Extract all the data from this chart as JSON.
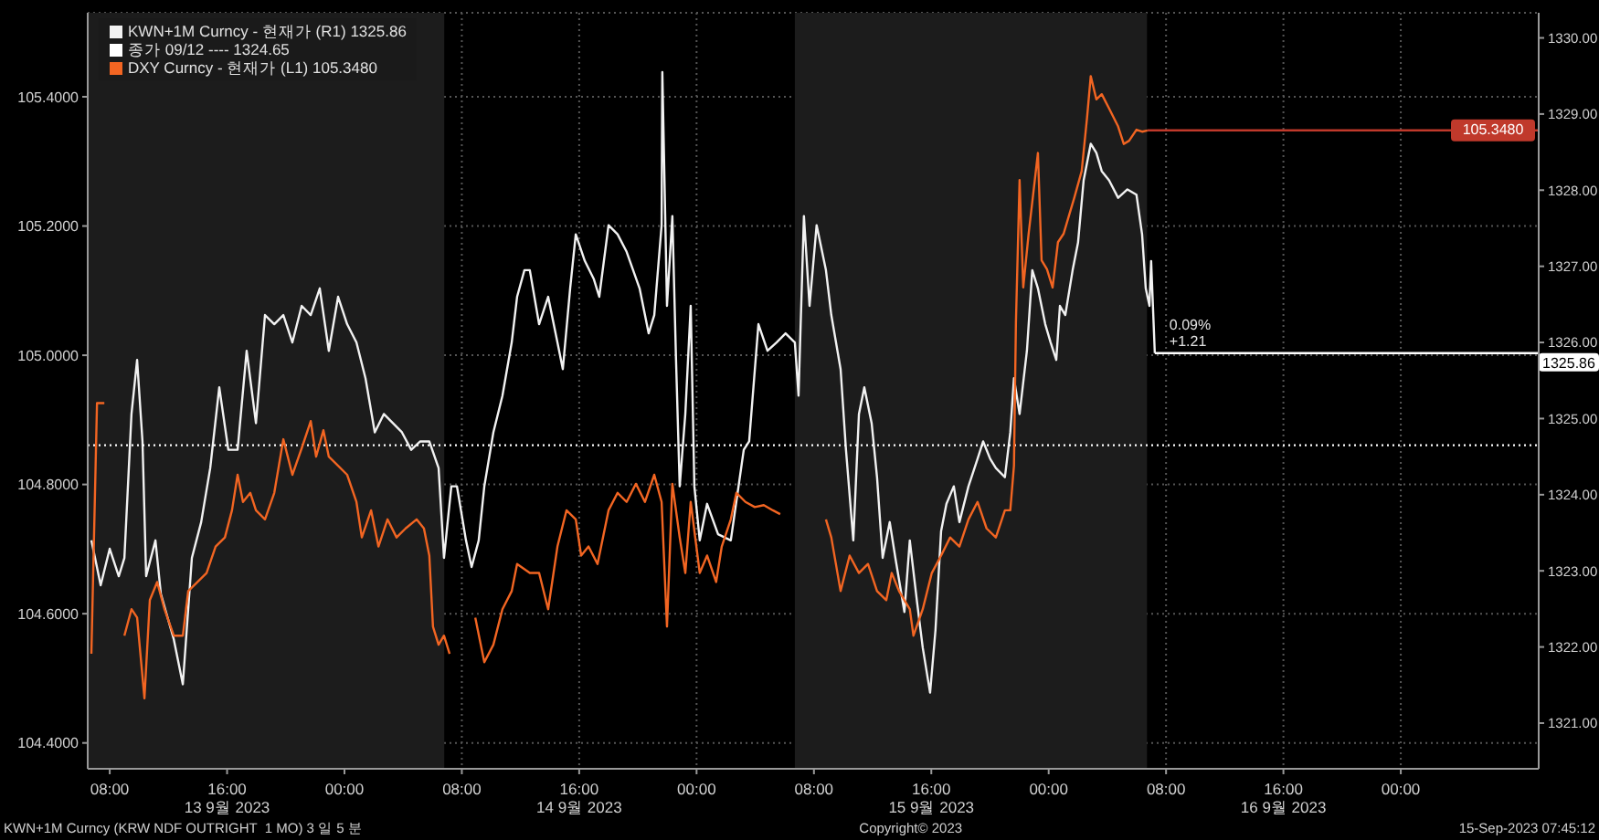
{
  "chart_data": {
    "type": "line",
    "xlim": [
      "2023-09-13T06:30",
      "2023-09-17T09:24"
    ],
    "xticks": [
      {
        "value": "2023-09-13T08:00",
        "label": "08:00"
      },
      {
        "value": "2023-09-13T16:00",
        "label": "16:00\n13 9월 2023"
      },
      {
        "value": "2023-09-14T00:00",
        "label": "00:00"
      },
      {
        "value": "2023-09-14T08:00",
        "label": "08:00"
      },
      {
        "value": "2023-09-14T16:00",
        "label": "16:00\n14 9월 2023"
      },
      {
        "value": "2023-09-15T00:00",
        "label": "00:00"
      },
      {
        "value": "2023-09-15T08:00",
        "label": "08:00"
      },
      {
        "value": "2023-09-15T16:00",
        "label": "16:00\n15 9월 2023"
      },
      {
        "value": "2023-09-16T00:00",
        "label": "00:00"
      },
      {
        "value": "2023-09-16T08:00",
        "label": "08:00"
      },
      {
        "value": "2023-09-16T16:00",
        "label": "16:00\n16 9월 2023"
      },
      {
        "value": "2023-09-17T00:00",
        "label": "00:00"
      }
    ],
    "ylim": [
      104.36,
      105.53
    ],
    "yticks": [
      {
        "value": 104.4,
        "label": "104.4000"
      },
      {
        "value": 104.6,
        "label": "104.6000"
      },
      {
        "value": 104.8,
        "label": "104.8000"
      },
      {
        "value": 105,
        "label": "105.0000"
      },
      {
        "value": 105.2,
        "label": "105.2000"
      },
      {
        "value": 105.4,
        "label": "105.4000"
      }
    ],
    "y2lim": [
      1320.4,
      1330.33
    ],
    "y2ticks": [
      {
        "value": 1321,
        "label": "1321.00"
      },
      {
        "value": 1322,
        "label": "1322.00"
      },
      {
        "value": 1323,
        "label": "1323.00"
      },
      {
        "value": 1324,
        "label": "1324.00"
      },
      {
        "value": 1325,
        "label": "1325.00"
      },
      {
        "value": 1326,
        "label": "1326.00"
      },
      {
        "value": 1327,
        "label": "1327.00"
      },
      {
        "value": 1328,
        "label": "1328.00"
      },
      {
        "value": 1329,
        "label": "1329.00"
      },
      {
        "value": 1330,
        "label": "1330.00"
      }
    ],
    "grid": true,
    "legend": "top left",
    "bands": [
      {
        "axis": "x",
        "from": "2023-09-13T06:30",
        "to": "2023-09-14T06:48",
        "color": "#1c1c1c"
      },
      {
        "axis": "x",
        "from": "2023-09-15T06:42",
        "to": "2023-09-16T06:42",
        "color": "#1c1c1c"
      }
    ],
    "ref_lines": [
      {
        "axis": "y",
        "value": 105.348,
        "label": "105.3480",
        "color": "#c0392b"
      },
      {
        "axis": "y2",
        "value": 1325.86,
        "label": "1325.86",
        "color": "#ffffff"
      }
    ],
    "annotations": [
      "0.09%",
      "+1.21",
      "KWN+1M Curncy (KRW NDF OUTRIGHT  1 MO) 3 일 5 분",
      "Copyright© 2023",
      "15-Sep-2023 07:45:12"
    ],
    "series": [
      {
        "name": "KWN+1M Curncy - 현재가 (R1) 1325.86",
        "color": "#f2f2f2",
        "axis": "y2",
        "x": [
          "2023-09-13T06:45",
          "2023-09-13T07:23",
          "2023-09-13T08:00",
          "2023-09-13T08:37",
          "2023-09-13T09:00",
          "2023-09-13T09:29",
          "2023-09-13T09:52",
          "2023-09-13T10:14",
          "2023-09-13T10:29",
          "2023-09-13T11:07",
          "2023-09-13T11:29",
          "2023-09-13T12:22",
          "2023-09-13T12:59",
          "2023-09-13T13:36",
          "2023-09-13T14:14",
          "2023-09-13T14:51",
          "2023-09-13T15:28",
          "2023-09-13T16:05",
          "2023-09-13T16:43",
          "2023-09-13T17:20",
          "2023-09-13T17:58",
          "2023-09-13T18:35",
          "2023-09-13T19:13",
          "2023-09-13T19:50",
          "2023-09-13T20:27",
          "2023-09-13T21:05",
          "2023-09-13T21:42",
          "2023-09-13T22:19",
          "2023-09-13T22:56",
          "2023-09-13T23:34",
          "2023-09-14T00:11",
          "2023-09-14T00:49",
          "2023-09-14T01:26",
          "2023-09-14T02:04",
          "2023-09-14T02:41",
          "2023-09-14T03:18",
          "2023-09-14T03:55",
          "2023-09-14T04:33",
          "2023-09-14T05:10",
          "2023-09-14T05:47",
          "2023-09-14T06:25",
          "2023-09-14T06:47",
          "2023-09-14T07:17",
          "2023-09-14T07:40",
          "2023-09-14T08:17",
          "2023-09-14T08:40",
          "2023-09-14T09:09",
          "2023-09-14T09:32",
          "2023-09-14T10:09",
          "2023-09-14T10:46",
          "2023-09-14T11:24",
          "2023-09-14T11:46",
          "2023-09-14T12:16",
          "2023-09-14T12:38",
          "2023-09-14T13:16",
          "2023-09-14T13:53",
          "2023-09-14T14:31",
          "2023-09-14T14:53",
          "2023-09-14T15:23",
          "2023-09-14T15:46",
          "2023-09-14T16:23",
          "2023-09-14T17:00",
          "2023-09-14T17:22",
          "2023-09-14T18:00",
          "2023-09-14T18:37",
          "2023-09-14T19:14",
          "2023-09-14T20:07",
          "2023-09-14T20:44",
          "2023-09-14T21:07",
          "2023-09-14T21:37",
          "2023-09-14T21:40",
          "2023-09-14T21:59",
          "2023-09-14T22:21",
          "2023-09-14T22:36",
          "2023-09-14T22:51",
          "2023-09-14T23:14",
          "2023-09-14T23:36",
          "2023-09-14T23:51",
          "2023-09-15T00:13",
          "2023-09-15T00:43",
          "2023-09-15T01:28",
          "2023-09-15T02:20",
          "2023-09-15T03:13",
          "2023-09-15T03:35",
          "2023-09-15T04:13",
          "2023-09-15T04:50",
          "2023-09-15T05:27",
          "2023-09-15T06:04",
          "2023-09-15T06:42",
          "2023-09-15T06:57",
          "2023-09-15T07:19",
          "2023-09-15T07:42",
          "2023-09-15T08:11",
          "2023-09-15T08:49",
          "2023-09-15T09:11",
          "2023-09-15T09:49",
          "2023-09-15T10:11",
          "2023-09-15T10:41",
          "2023-09-15T11:04",
          "2023-09-15T11:26",
          "2023-09-15T11:56",
          "2023-09-15T12:18",
          "2023-09-15T12:41",
          "2023-09-15T13:10",
          "2023-09-15T13:33",
          "2023-09-15T14:10",
          "2023-09-15T14:32",
          "2023-09-15T15:02",
          "2023-09-15T15:25",
          "2023-09-15T15:55",
          "2023-09-15T16:17",
          "2023-09-15T16:40",
          "2023-09-15T17:02",
          "2023-09-15T17:32",
          "2023-09-15T17:55",
          "2023-09-15T18:32",
          "2023-09-15T19:09",
          "2023-09-15T19:32",
          "2023-09-15T20:01",
          "2023-09-15T20:24",
          "2023-09-15T21:01",
          "2023-09-15T21:23",
          "2023-09-15T21:38",
          "2023-09-15T22:01",
          "2023-09-15T22:31",
          "2023-09-15T22:53",
          "2023-09-15T23:16",
          "2023-09-15T23:46",
          "2023-09-16T00:08",
          "2023-09-16T00:31",
          "2023-09-16T00:46",
          "2023-09-16T01:08",
          "2023-09-16T01:38",
          "2023-09-16T02:00",
          "2023-09-16T02:23",
          "2023-09-16T02:52",
          "2023-09-16T03:15",
          "2023-09-16T03:37",
          "2023-09-16T04:07",
          "2023-09-16T04:44",
          "2023-09-16T05:22",
          "2023-09-16T05:59",
          "2023-09-16T06:22",
          "2023-09-16T06:37",
          "2023-09-16T06:52",
          "2023-09-16T06:59",
          "2023-09-16T07:14"
        ],
        "values": [
          1323.4,
          1322.81,
          1323.29,
          1322.93,
          1323.17,
          1325.06,
          1325.77,
          1324.7,
          1322.93,
          1323.4,
          1322.7,
          1322.1,
          1321.51,
          1323.17,
          1323.64,
          1324.35,
          1325.41,
          1324.59,
          1324.59,
          1325.89,
          1324.94,
          1326.36,
          1326.24,
          1326.36,
          1326.0,
          1326.48,
          1326.36,
          1326.71,
          1325.89,
          1326.6,
          1326.24,
          1326.0,
          1325.53,
          1324.82,
          1325.06,
          1324.94,
          1324.82,
          1324.59,
          1324.7,
          1324.7,
          1324.35,
          1323.17,
          1324.11,
          1324.11,
          1323.4,
          1323.05,
          1323.4,
          1324.11,
          1324.82,
          1325.3,
          1326.0,
          1326.6,
          1326.95,
          1326.95,
          1326.24,
          1326.6,
          1326.0,
          1325.65,
          1326.71,
          1327.42,
          1327.07,
          1326.83,
          1326.6,
          1327.54,
          1327.42,
          1327.19,
          1326.71,
          1326.12,
          1326.36,
          1327.54,
          1329.55,
          1326.48,
          1327.66,
          1325.77,
          1324.11,
          1325.06,
          1326.48,
          1324.11,
          1323.4,
          1323.88,
          1323.48,
          1323.4,
          1324.59,
          1324.7,
          1326.24,
          1325.89,
          1326.0,
          1326.12,
          1326.0,
          1325.3,
          1327.66,
          1326.48,
          1327.54,
          1326.95,
          1326.36,
          1325.65,
          1324.59,
          1323.4,
          1325.06,
          1325.41,
          1324.94,
          1324.23,
          1323.17,
          1323.64,
          1323.17,
          1322.46,
          1323.4,
          1322.58,
          1321.99,
          1321.4,
          1322.22,
          1323.52,
          1323.88,
          1324.11,
          1323.64,
          1324.11,
          1324.47,
          1324.7,
          1324.47,
          1324.35,
          1324.23,
          1324.82,
          1325.53,
          1325.06,
          1325.89,
          1326.95,
          1326.71,
          1326.24,
          1326.0,
          1325.77,
          1326.48,
          1326.36,
          1326.95,
          1327.31,
          1328.13,
          1328.61,
          1328.49,
          1328.25,
          1328.13,
          1327.9,
          1328.01,
          1327.94,
          1327.42,
          1326.71,
          1326.48,
          1327.07,
          1325.86
        ]
      },
      {
        "name": "종가 09/12 ---- 1324.65",
        "color": "#ffffff",
        "axis": "y2",
        "line_style": "dotted",
        "x": [
          "2023-09-13T06:30",
          "2023-09-17T09:24"
        ],
        "values": [
          1324.65,
          1324.65
        ]
      },
      {
        "name": "DXY Curncy - 현재가 (L1) 105.3480",
        "color": "#f26522",
        "x": [
          "2023-09-13T06:45",
          "2023-09-13T07:08",
          "2023-09-13T07:38",
          "2023-09-13T08:18",
          "2023-09-13T09:00",
          "2023-09-13T09:29",
          "2023-09-13T09:52",
          "2023-09-13T10:22",
          "2023-09-13T10:44",
          "2023-09-13T11:14",
          "2023-09-13T11:44",
          "2023-09-13T12:22",
          "2023-09-13T12:59",
          "2023-09-13T13:21",
          "2023-09-13T13:59",
          "2023-09-13T14:36",
          "2023-09-13T15:13",
          "2023-09-13T15:51",
          "2023-09-13T16:20",
          "2023-09-13T16:43",
          "2023-09-13T17:05",
          "2023-09-13T17:35",
          "2023-09-13T17:58",
          "2023-09-13T18:35",
          "2023-09-13T19:13",
          "2023-09-13T19:50",
          "2023-09-13T20:27",
          "2023-09-13T21:05",
          "2023-09-13T21:42",
          "2023-09-13T22:04",
          "2023-09-13T22:34",
          "2023-09-13T22:56",
          "2023-09-13T23:34",
          "2023-09-14T00:11",
          "2023-09-14T00:49",
          "2023-09-14T01:11",
          "2023-09-14T01:49",
          "2023-09-14T02:19",
          "2023-09-14T02:56",
          "2023-09-14T03:33",
          "2023-09-14T04:10",
          "2023-09-14T04:55",
          "2023-09-14T05:25",
          "2023-09-14T05:47",
          "2023-09-14T06:02",
          "2023-09-14T06:25",
          "2023-09-14T06:47",
          "2023-09-14T07:10",
          "2023-09-14T08:00",
          "2023-09-14T08:55",
          "2023-09-14T09:32",
          "2023-09-14T10:09",
          "2023-09-14T10:46",
          "2023-09-14T11:24",
          "2023-09-14T11:46",
          "2023-09-14T12:38",
          "2023-09-14T13:16",
          "2023-09-14T13:53",
          "2023-09-14T14:31",
          "2023-09-14T15:08",
          "2023-09-14T15:46",
          "2023-09-14T16:08",
          "2023-09-14T16:38",
          "2023-09-14T17:15",
          "2023-09-14T18:00",
          "2023-09-14T18:37",
          "2023-09-14T19:14",
          "2023-09-14T19:52",
          "2023-09-14T20:29",
          "2023-09-14T21:07",
          "2023-09-14T21:37",
          "2023-09-14T21:59",
          "2023-09-14T22:21",
          "2023-09-14T22:51",
          "2023-09-14T23:14",
          "2023-09-14T23:36",
          "2023-09-15T00:13",
          "2023-09-15T00:43",
          "2023-09-15T01:20",
          "2023-09-15T01:43",
          "2023-09-15T02:20",
          "2023-09-15T02:43",
          "2023-09-15T03:20",
          "2023-09-15T03:58",
          "2023-09-15T04:35",
          "2023-09-15T05:12",
          "2023-09-15T05:42",
          "2023-09-15T07:12",
          "2023-09-15T08:49",
          "2023-09-15T09:11",
          "2023-09-15T09:49",
          "2023-09-15T10:26",
          "2023-09-15T11:04",
          "2023-09-15T11:41",
          "2023-09-15T12:18",
          "2023-09-15T12:56",
          "2023-09-15T13:18",
          "2023-09-15T13:48",
          "2023-09-15T14:32",
          "2023-09-15T14:47",
          "2023-09-15T15:25",
          "2023-09-15T16:02",
          "2023-09-15T16:40",
          "2023-09-15T17:17",
          "2023-09-15T17:55",
          "2023-09-15T18:32",
          "2023-09-15T19:09",
          "2023-09-15T19:46",
          "2023-09-15T20:24",
          "2023-09-15T21:01",
          "2023-09-15T21:23",
          "2023-09-15T21:38",
          "2023-09-15T21:46",
          "2023-09-15T22:01",
          "2023-09-15T22:16",
          "2023-09-15T22:38",
          "2023-09-15T23:16",
          "2023-09-15T23:31",
          "2023-09-15T23:53",
          "2023-09-16T00:16",
          "2023-09-16T00:38",
          "2023-09-16T01:01",
          "2023-09-16T01:23",
          "2023-09-16T01:45",
          "2023-09-16T02:15",
          "2023-09-16T02:37",
          "2023-09-16T02:52",
          "2023-09-16T03:15",
          "2023-09-16T03:37",
          "2023-09-16T04:07",
          "2023-09-16T04:44",
          "2023-09-16T05:07",
          "2023-09-16T05:29",
          "2023-09-16T05:59",
          "2023-09-16T06:22",
          "2023-09-16T06:44"
        ],
        "values": [
          104.538,
          104.926,
          104.926,
          null,
          104.566,
          104.607,
          104.594,
          104.469,
          104.621,
          104.649,
          104.607,
          104.566,
          104.566,
          104.635,
          104.649,
          104.663,
          104.704,
          104.718,
          104.76,
          104.815,
          104.773,
          104.787,
          104.76,
          104.746,
          104.787,
          104.87,
          104.815,
          104.856,
          104.898,
          104.843,
          104.884,
          104.843,
          104.829,
          104.815,
          104.773,
          104.718,
          104.76,
          104.704,
          104.746,
          104.718,
          104.732,
          104.746,
          104.732,
          104.69,
          104.58,
          104.552,
          104.566,
          104.538,
          null,
          104.594,
          104.525,
          104.552,
          104.607,
          104.635,
          104.677,
          104.663,
          104.663,
          104.607,
          104.704,
          104.76,
          104.746,
          104.69,
          104.704,
          104.677,
          104.76,
          104.787,
          104.773,
          104.801,
          104.773,
          104.815,
          104.773,
          104.58,
          104.801,
          104.718,
          104.663,
          104.773,
          104.663,
          104.69,
          104.649,
          104.704,
          104.746,
          104.787,
          104.773,
          104.765,
          104.768,
          104.76,
          104.754,
          null,
          104.746,
          104.718,
          104.635,
          104.69,
          104.663,
          104.677,
          104.635,
          104.621,
          104.663,
          104.635,
          104.607,
          104.566,
          104.607,
          104.663,
          104.69,
          104.718,
          104.704,
          104.746,
          104.773,
          104.732,
          104.718,
          104.76,
          104.76,
          104.829,
          105.05,
          105.271,
          105.105,
          105.188,
          105.313,
          105.147,
          105.133,
          105.105,
          105.175,
          105.188,
          105.216,
          105.244,
          105.285,
          105.368,
          105.432,
          105.396,
          105.404,
          105.382,
          105.354,
          105.327,
          105.332,
          105.349,
          105.346,
          105.348
        ]
      }
    ]
  }
}
